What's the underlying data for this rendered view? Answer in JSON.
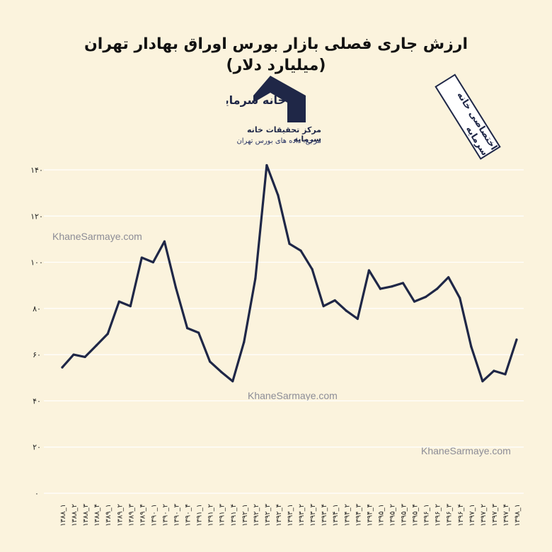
{
  "title": "ارزش جاری فصلی بازار بورس اوراق بهادار تهران (میلیارد دلار)",
  "stamp_text": "اختصاصی خانه سرمایه",
  "logo": {
    "brand_text": "خانه سرمایه",
    "line1": "مرکز تحقیقات خانه سرمایه",
    "line2": "مرجع: داده های بورس تهران",
    "color": "#1f2747"
  },
  "watermarks": [
    "KhaneSarmaye.com",
    "KhaneSarmaye.com",
    "KhaneSarmaye.com"
  ],
  "colors": {
    "background": "#fbf3dd",
    "line": "#1f2747",
    "grid": "#ffffff",
    "text": "#222222"
  },
  "chart_data": {
    "type": "line",
    "title": "ارزش جاری فصلی بازار بورس اوراق بهادار تهران (میلیارد دلار)",
    "xlabel": "",
    "ylabel": "",
    "ylim": [
      0,
      140
    ],
    "grid": true,
    "y_ticks": [
      {
        "value": 0,
        "label": "۰"
      },
      {
        "value": 20,
        "label": "۲۰"
      },
      {
        "value": 40,
        "label": "۴۰"
      },
      {
        "value": 60,
        "label": "۶۰"
      },
      {
        "value": 80,
        "label": "۸۰"
      },
      {
        "value": 100,
        "label": "۱۰۰"
      },
      {
        "value": 120,
        "label": "۱۲۰"
      },
      {
        "value": 140,
        "label": "۱۴۰"
      }
    ],
    "categories": [
      "۱۳۸۸_۱",
      "۱۳۸۸_۲",
      "۱۳۸۸_۳",
      "۱۳۸۸_۴",
      "۱۳۸۹_۱",
      "۱۳۸۹_۲",
      "۱۳۸۹_۳",
      "۱۳۸۹_۴",
      "۱۳۹۰_۱",
      "۱۳۹۰_۲",
      "۱۳۹۰_۳",
      "۱۳۹۰_۴",
      "۱۳۹۱_۱",
      "۱۳۹۱_۲",
      "۱۳۹۱_۳",
      "۱۳۹۱_۴",
      "۱۳۹۲_۱",
      "۱۳۹۲_۲",
      "۱۳۹۲_۳",
      "۱۳۹۲_۴",
      "۱۳۹۳_۱",
      "۱۳۹۳_۲",
      "۱۳۹۳_۳",
      "۱۳۹۳_۴",
      "۱۳۹۴_۱",
      "۱۳۹۴_۲",
      "۱۳۹۴_۳",
      "۱۳۹۴_۴",
      "۱۳۹۵_۱",
      "۱۳۹۵_۲",
      "۱۳۹۵_۳",
      "۱۳۹۵_۴",
      "۱۳۹۶_۱",
      "۱۳۹۶_۲",
      "۱۳۹۶_۳",
      "۱۳۹۶_۴",
      "۱۳۹۷_۱",
      "۱۳۹۷_۲",
      "۱۳۹۷_۳",
      "۱۳۹۷_۴",
      "۱۳۹۸_۱"
    ],
    "series": [
      {
        "values": [
          54.5,
          60,
          59,
          64,
          69,
          83,
          81,
          102,
          100,
          109,
          89,
          71.5,
          69.5,
          57,
          52.5,
          48.5,
          65.5,
          93,
          142,
          129,
          108,
          105,
          97,
          81,
          83.5,
          79,
          75.5,
          96.5,
          88.5,
          89.5,
          91,
          83,
          85,
          88.5,
          93.5,
          84.5,
          63.5,
          48.5,
          53,
          51.5,
          66.5
        ]
      }
    ]
  }
}
